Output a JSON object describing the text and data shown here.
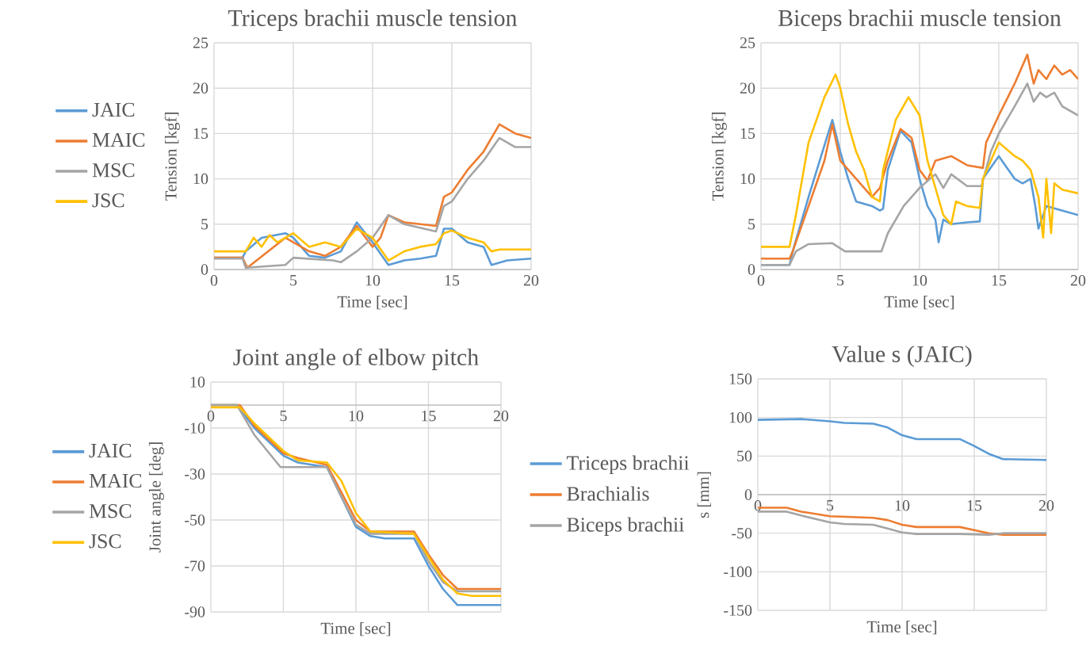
{
  "chart_data": [
    {
      "type": "line",
      "title": "Triceps brachii muscle tension",
      "xlabel": "Time [sec]",
      "ylabel": "Tension [kgf]",
      "xlim": [
        0,
        20
      ],
      "xticks": [
        0,
        5,
        10,
        15,
        20
      ],
      "ylim": [
        0,
        25
      ],
      "yticks": [
        0,
        5,
        10,
        15,
        20,
        25
      ],
      "grid": true,
      "legend": "left",
      "series": [
        {
          "name": "JAIC",
          "color": "#5b9bd5",
          "x": [
            0,
            1.8,
            2,
            3,
            4.5,
            5,
            6,
            7,
            8,
            9,
            10,
            11,
            12,
            13,
            14,
            14.5,
            15,
            16,
            17,
            17.5,
            18.5,
            20
          ],
          "values": [
            1.3,
            1.3,
            2,
            3.5,
            4,
            3.5,
            1.5,
            1.3,
            2,
            5.2,
            3,
            0.5,
            1,
            1.2,
            1.5,
            4.5,
            4.5,
            3,
            2.5,
            0.5,
            1,
            1.2
          ]
        },
        {
          "name": "MAIC",
          "color": "#ed7d31",
          "x": [
            0,
            1.8,
            2.1,
            4.5,
            6,
            7,
            8,
            9,
            10,
            10.5,
            11,
            12,
            14,
            14.5,
            15,
            16,
            17,
            18,
            19,
            20
          ],
          "values": [
            1.3,
            1.3,
            0.2,
            3.5,
            2,
            1.5,
            2.5,
            4.8,
            2.5,
            3.5,
            6,
            5.2,
            4.8,
            8,
            8.5,
            11,
            13,
            16,
            15,
            14.5
          ]
        },
        {
          "name": "MSC",
          "color": "#a5a5a5",
          "x": [
            0,
            1.8,
            2,
            4.5,
            5,
            7.5,
            8,
            9,
            10,
            11,
            12,
            14,
            14.5,
            15,
            16,
            17,
            18,
            19,
            20
          ],
          "values": [
            1.2,
            1.2,
            0.2,
            0.5,
            1.3,
            1,
            0.8,
            2,
            3.5,
            6,
            5,
            4.2,
            7,
            7.5,
            10,
            12,
            14.5,
            13.5,
            13.5
          ]
        },
        {
          "name": "JSC",
          "color": "#ffc000",
          "x": [
            0,
            2,
            2.5,
            3,
            3.5,
            4,
            5,
            6,
            7,
            8,
            9,
            10,
            11,
            12,
            13,
            14,
            14.5,
            15,
            16,
            17,
            17.5,
            18,
            20
          ],
          "values": [
            2,
            2,
            3.5,
            2.5,
            3.8,
            3,
            4,
            2.5,
            3,
            2.5,
            4.5,
            3.5,
            1,
            2,
            2.5,
            2.8,
            4,
            4.3,
            3.5,
            3,
            2,
            2.2,
            2.2
          ]
        }
      ]
    },
    {
      "type": "line",
      "title": "Biceps brachii muscle tension",
      "xlabel": "Time [sec]",
      "ylabel": "Tension [kgf]",
      "xlim": [
        0,
        20
      ],
      "xticks": [
        0,
        5,
        10,
        15,
        20
      ],
      "ylim": [
        0,
        25
      ],
      "yticks": [
        0,
        5,
        10,
        15,
        20,
        25
      ],
      "grid": true,
      "series": [
        {
          "color": "#5b9bd5",
          "x": [
            0,
            1.8,
            2,
            3,
            4.5,
            5,
            5.5,
            6,
            7,
            7.5,
            7.7,
            8,
            8.8,
            9.5,
            10,
            10.5,
            11,
            11.2,
            11.5,
            12,
            13,
            13.8,
            14,
            15,
            16,
            16.5,
            17,
            17.3,
            17.5,
            18,
            19,
            20
          ],
          "values": [
            0.5,
            0.5,
            2,
            8,
            16.5,
            13,
            10,
            7.5,
            7,
            6.5,
            6.7,
            11,
            15.3,
            14,
            10,
            7,
            5.5,
            3,
            5.5,
            5,
            5.2,
            5.3,
            10,
            12.5,
            10,
            9.5,
            10,
            7,
            4.5,
            7,
            6.5,
            6
          ]
        },
        {
          "color": "#ed7d31",
          "x": [
            0,
            1.8,
            2,
            3,
            4,
            4.5,
            5,
            6,
            7,
            7.5,
            8,
            8.8,
            9.5,
            10,
            10.5,
            11,
            12,
            13,
            14,
            14.2,
            15,
            16,
            16.8,
            17,
            17.2,
            17.5,
            18,
            18.5,
            19,
            19.5,
            20
          ],
          "values": [
            1.2,
            1.2,
            2,
            7,
            12,
            16,
            12,
            10,
            8,
            9,
            12,
            15.5,
            14.5,
            11,
            9.8,
            12,
            12.5,
            11.5,
            11.2,
            14,
            17,
            20.5,
            23.7,
            22,
            20.5,
            22,
            21,
            22.5,
            21.5,
            22,
            21
          ]
        },
        {
          "color": "#a5a5a5",
          "x": [
            0,
            1.8,
            2.2,
            3,
            4.5,
            5.3,
            7.6,
            8,
            9,
            10,
            11,
            11.5,
            12,
            13,
            13.9,
            14.5,
            15,
            16,
            16.8,
            17.2,
            17.6,
            18,
            18.5,
            19,
            20
          ],
          "values": [
            0.5,
            0.5,
            2,
            2.8,
            2.9,
            2,
            2,
            4,
            7,
            9,
            10.5,
            9,
            10.5,
            9.2,
            9.2,
            13,
            15,
            18,
            20.5,
            18.5,
            19.5,
            19,
            19.5,
            18,
            17
          ]
        },
        {
          "color": "#ffc000",
          "x": [
            0,
            1.8,
            2.2,
            3,
            4,
            4.7,
            5,
            5.5,
            6,
            6.5,
            7,
            7.5,
            7.7,
            8.5,
            9.3,
            10,
            10.5,
            11,
            11.5,
            12,
            12.3,
            13,
            13.8,
            14,
            15,
            16,
            16.5,
            17,
            17.5,
            17.8,
            18,
            18.3,
            18.5,
            19,
            20
          ],
          "values": [
            2.5,
            2.5,
            6,
            14,
            19,
            21.5,
            20,
            16,
            13,
            11,
            8,
            7.5,
            11,
            16.5,
            19,
            17,
            12,
            9,
            6,
            5,
            7.5,
            7,
            6.8,
            10,
            14,
            12.5,
            12,
            11,
            8,
            3.5,
            10,
            4,
            9.5,
            8.8,
            8.4
          ]
        }
      ]
    },
    {
      "type": "line",
      "title": "Joint angle of elbow pitch",
      "xlabel": "Time [sec]",
      "ylabel": "Joint angle [deg]",
      "xlim": [
        0,
        20
      ],
      "xticks": [
        0,
        5,
        10,
        15,
        20
      ],
      "ylim": [
        -90,
        10
      ],
      "yticks": [
        -90,
        -70,
        -50,
        -30,
        -10,
        10
      ],
      "grid": true,
      "legend": "left",
      "series": [
        {
          "name": "JAIC",
          "color": "#5b9bd5",
          "x": [
            0,
            1.8,
            3,
            5,
            6,
            8,
            9,
            10,
            11,
            12,
            14,
            15,
            16,
            17,
            20
          ],
          "values": [
            0,
            0,
            -10,
            -22,
            -25,
            -27,
            -40,
            -53,
            -57,
            -58,
            -58,
            -70,
            -80,
            -87,
            -87
          ]
        },
        {
          "name": "MAIC",
          "color": "#ed7d31",
          "x": [
            0,
            2,
            3,
            5,
            6,
            8,
            9,
            10,
            11,
            14,
            15,
            16,
            17,
            20
          ],
          "values": [
            0,
            0,
            -9,
            -21,
            -23,
            -26,
            -38,
            -50,
            -55,
            -55,
            -65,
            -74,
            -80,
            -80
          ]
        },
        {
          "name": "MSC",
          "color": "#a5a5a5",
          "x": [
            0,
            1.8,
            3,
            4.8,
            8,
            9,
            10,
            11,
            14,
            15,
            16,
            17,
            20
          ],
          "values": [
            0,
            0,
            -13,
            -27,
            -27,
            -40,
            -52,
            -56,
            -56,
            -68,
            -77,
            -81,
            -81
          ]
        },
        {
          "name": "JSC",
          "color": "#ffc000",
          "x": [
            0,
            2,
            3,
            5,
            6,
            8,
            9,
            10,
            11,
            14,
            15,
            16,
            17,
            18,
            20
          ],
          "values": [
            -1,
            -1,
            -8,
            -20,
            -24,
            -25,
            -33,
            -47,
            -55,
            -56,
            -66,
            -76,
            -82,
            -83,
            -83
          ]
        }
      ]
    },
    {
      "type": "line",
      "title": "Value s (JAIC)",
      "xlabel": "Time [sec]",
      "ylabel": "s [mm]",
      "xlim": [
        0,
        20
      ],
      "xticks": [
        0,
        5,
        10,
        15,
        20
      ],
      "ylim": [
        -150,
        150
      ],
      "yticks": [
        -150,
        -100,
        -50,
        0,
        50,
        100,
        150
      ],
      "grid": true,
      "legend": "left",
      "series": [
        {
          "name": "Triceps brachii",
          "color": "#5b9bd5",
          "x": [
            0,
            3,
            5,
            6,
            8,
            9,
            10,
            11,
            14,
            15,
            16,
            17,
            20
          ],
          "values": [
            97,
            98,
            95,
            93,
            92,
            87,
            77,
            72,
            72,
            63,
            53,
            46,
            45
          ]
        },
        {
          "name": "Brachialis",
          "color": "#ed7d31",
          "x": [
            0,
            2,
            3,
            5,
            8,
            9,
            10,
            11,
            14,
            15,
            16,
            17,
            20
          ],
          "values": [
            -17,
            -17,
            -22,
            -28,
            -30,
            -33,
            -39,
            -42,
            -42,
            -46,
            -50,
            -52,
            -52
          ]
        },
        {
          "name": "Biceps brachii",
          "color": "#a5a5a5",
          "x": [
            0,
            2,
            3,
            5,
            6,
            8,
            9,
            10,
            11,
            14,
            16,
            17,
            20
          ],
          "values": [
            -22,
            -22,
            -27,
            -36,
            -38,
            -39,
            -44,
            -49,
            -51,
            -51,
            -52,
            -50,
            -50
          ]
        }
      ]
    }
  ]
}
